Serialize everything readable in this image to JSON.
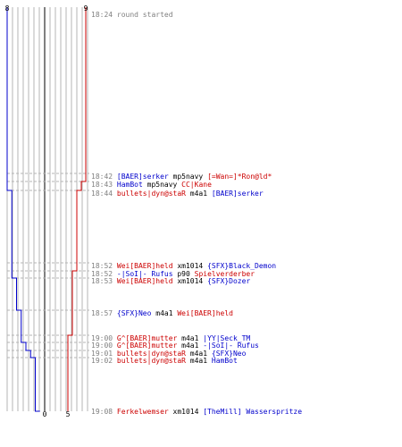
{
  "colors": {
    "team_blue": "#0000cc",
    "team_red": "#cc0000",
    "text_gray": "#808080",
    "line_gray": "#b4b4b4",
    "center_line": "#808080",
    "event_text": "#000000"
  },
  "scores": {
    "blue_start": "8",
    "red_start": "9",
    "blue_end": "0",
    "red_end": "5"
  },
  "events": [
    {
      "time": "18:24",
      "parts": [
        {
          "t": "round started",
          "c": "gray"
        }
      ]
    },
    {
      "time": "18:42",
      "parts": [
        {
          "t": "[BAER]serker",
          "c": "blue"
        },
        {
          "t": " mp5navy ",
          "c": "black"
        },
        {
          "t": "[=Wan=]*Ron@ld*",
          "c": "red"
        }
      ]
    },
    {
      "time": "18:43",
      "parts": [
        {
          "t": "HamBot",
          "c": "blue"
        },
        {
          "t": " mp5navy ",
          "c": "black"
        },
        {
          "t": "CC|Kane",
          "c": "red"
        }
      ]
    },
    {
      "time": "18:44",
      "parts": [
        {
          "t": "bullets|dyn@staR",
          "c": "red"
        },
        {
          "t": " m4a1 ",
          "c": "black"
        },
        {
          "t": "[BAER]serker",
          "c": "blue"
        }
      ]
    },
    {
      "time": "18:52",
      "parts": [
        {
          "t": "Wei[BAER]held",
          "c": "red"
        },
        {
          "t": " xm1014 ",
          "c": "black"
        },
        {
          "t": "{SFX}Black_Demon",
          "c": "blue"
        }
      ]
    },
    {
      "time": "18:52",
      "parts": [
        {
          "t": "-|SoI|- Rufus",
          "c": "blue"
        },
        {
          "t": " p90 ",
          "c": "black"
        },
        {
          "t": "Spielverderber",
          "c": "red"
        }
      ]
    },
    {
      "time": "18:53",
      "parts": [
        {
          "t": "Wei[BAER]held",
          "c": "red"
        },
        {
          "t": " xm1014 ",
          "c": "black"
        },
        {
          "t": "{SFX}Dozer",
          "c": "blue"
        }
      ]
    },
    {
      "time": "18:57",
      "parts": [
        {
          "t": "{SFX}Neo",
          "c": "blue"
        },
        {
          "t": " m4a1 ",
          "c": "black"
        },
        {
          "t": "Wei[BAER]held",
          "c": "red"
        }
      ]
    },
    {
      "time": "19:00",
      "parts": [
        {
          "t": "G^[BAER]mutter",
          "c": "red"
        },
        {
          "t": " m4a1 ",
          "c": "black"
        },
        {
          "t": "|YY|Seck_TM",
          "c": "blue"
        }
      ]
    },
    {
      "time": "19:00",
      "parts": [
        {
          "t": "G^[BAER]mutter",
          "c": "red"
        },
        {
          "t": " m4a1 ",
          "c": "black"
        },
        {
          "t": "-|SoI|- Rufus",
          "c": "blue"
        }
      ]
    },
    {
      "time": "19:01",
      "parts": [
        {
          "t": "bullets|dyn@staR",
          "c": "red"
        },
        {
          "t": " m4a1 ",
          "c": "black"
        },
        {
          "t": "{SFX}Neo",
          "c": "blue"
        }
      ]
    },
    {
      "time": "19:02",
      "parts": [
        {
          "t": "bullets|dyn@staR",
          "c": "red"
        },
        {
          "t": " m4a1 ",
          "c": "black"
        },
        {
          "t": "HamBot",
          "c": "blue"
        }
      ]
    },
    {
      "time": "19:08",
      "parts": [
        {
          "t": "Ferkelwemser",
          "c": "red"
        },
        {
          "t": " xm1014 ",
          "c": "black"
        },
        {
          "t": "[TheMill] Wasserspritze",
          "c": "blue"
        }
      ]
    }
  ],
  "players_alive": {
    "blue": [
      8,
      8,
      8,
      7,
      7,
      7,
      6,
      5,
      5,
      4,
      3,
      2,
      1,
      0
    ],
    "red": [
      9,
      9,
      8,
      7,
      7,
      6,
      6,
      6,
      5,
      5,
      5,
      5,
      5,
      5
    ]
  }
}
